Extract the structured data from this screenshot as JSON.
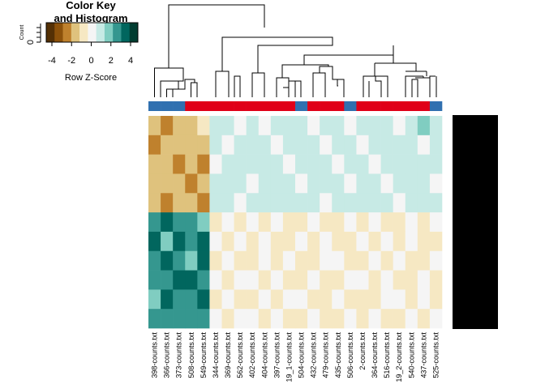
{
  "chart_data": {
    "type": "heatmap",
    "color_key": {
      "title_line1": "Color Key",
      "title_line2": "and Histogram",
      "xlabel": "Row Z-Score",
      "ylabel": "Count",
      "ytick": 0,
      "xlim": [
        -4,
        4
      ],
      "xticks": [
        -4,
        -2,
        0,
        2,
        4
      ]
    },
    "colors": [
      "#543005",
      "#8c510a",
      "#bf812d",
      "#dfc27d",
      "#f6e8c3",
      "#f5f5f5",
      "#c7eae5",
      "#80cdc1",
      "#35978f",
      "#01665e",
      "#003c30"
    ],
    "categories": [
      "398-counts.txt",
      "366-counts.txt",
      "373-counts.txt",
      "508-counts.txt",
      "549-counts.txt",
      "344-counts.txt",
      "369-counts.txt",
      "562-counts.txt",
      "402-counts.txt",
      "404-counts.txt",
      "397-counts.txt",
      "19_1-counts.txt",
      "504-counts.txt",
      "432-counts.txt",
      "479-counts.txt",
      "435-counts.txt",
      "506-counts.txt",
      "2-counts.txt",
      "364-counts.txt",
      "516-counts.txt",
      "19_2-counts.txt",
      "540-counts.txt",
      "437-counts.txt",
      "525-counts.txt"
    ],
    "column_colors": [
      "#3070b0",
      "#3070b0",
      "#3070b0",
      "#e00018",
      "#e00018",
      "#e00018",
      "#e00018",
      "#e00018",
      "#e00018",
      "#e00018",
      "#e00018",
      "#e00018",
      "#3070b0",
      "#e00018",
      "#e00018",
      "#e00018",
      "#3070b0",
      "#e00018",
      "#e00018",
      "#e00018",
      "#e00018",
      "#e00018",
      "#e00018",
      "#3070b0"
    ],
    "values": [
      [
        -1.5,
        -2,
        -1.2,
        -1.8,
        -1,
        0.5,
        1,
        0.3,
        0.8,
        0.2,
        0.6,
        0.4,
        0.9,
        0.3,
        0.7,
        0.5,
        0.2,
        0.6,
        0.4,
        0.8,
        0.3,
        0.5,
        1.1,
        0.4
      ],
      [
        -2,
        -1.3,
        -1.7,
        -1.1,
        -1.6,
        0.7,
        0.3,
        0.9,
        0.4,
        0.6,
        0.2,
        0.8,
        0.5,
        0.7,
        0.3,
        0.9,
        0.6,
        0.3,
        0.7,
        0.4,
        0.9,
        0.6,
        0.3,
        0.5
      ],
      [
        -1.2,
        -1.8,
        -2.2,
        -1.4,
        -1.9,
        0.3,
        0.8,
        0.5,
        1,
        0.4,
        0.7,
        0.3,
        0.6,
        0.4,
        0.8,
        0.2,
        0.7,
        0.5,
        0.3,
        0.6,
        0.4,
        0.8,
        0.5,
        0.7
      ],
      [
        -1.7,
        -1.1,
        -1.5,
        -2,
        -1.3,
        0.6,
        0.4,
        0.7,
        0.3,
        0.8,
        0.5,
        0.9,
        0.3,
        0.6,
        0.4,
        0.7,
        0.3,
        0.8,
        0.6,
        0.2,
        0.7,
        0.4,
        0.6,
        0.3
      ],
      [
        -1.4,
        -1.9,
        -1.3,
        -1.6,
        -2.3,
        0.4,
        0.7,
        0.2,
        0.6,
        0.5,
        0.8,
        0.4,
        0.7,
        0.5,
        0.3,
        0.6,
        0.8,
        0.4,
        0.5,
        0.7,
        0.3,
        0.6,
        0.4,
        0.8
      ],
      [
        2.1,
        2.8,
        1.9,
        2.5,
        1.7,
        -0.4,
        -0.2,
        -0.5,
        -0.3,
        -0.6,
        -0.2,
        -0.4,
        -0.5,
        -0.3,
        -0.6,
        -0.4,
        -0.2,
        -0.5,
        -0.3,
        -0.4,
        -0.6,
        -0.2,
        -0.5,
        -0.3
      ],
      [
        2.6,
        1.8,
        2.9,
        2.2,
        3.1,
        -0.3,
        -0.5,
        -0.2,
        -0.4,
        -0.3,
        -0.6,
        -0.5,
        -0.2,
        -0.4,
        -0.3,
        -0.5,
        -0.6,
        -0.3,
        -0.4,
        -0.2,
        -0.5,
        -0.3,
        -0.4,
        -0.6
      ],
      [
        1.9,
        3,
        2.4,
        1.8,
        2.7,
        -0.5,
        -0.3,
        -0.4,
        -0.6,
        -0.2,
        -0.4,
        -0.3,
        -0.5,
        -0.6,
        -0.2,
        -0.3,
        -0.4,
        -0.6,
        -0.2,
        -0.5,
        -0.3,
        -0.4,
        -0.6,
        -0.2
      ],
      [
        2.4,
        2.2,
        2.7,
        3.2,
        2,
        -0.2,
        -0.6,
        -0.3,
        -0.2,
        -0.5,
        -0.3,
        -0.6,
        -0.4,
        -0.2,
        -0.5,
        -0.6,
        -0.3,
        -0.2,
        -0.5,
        -0.3,
        -0.4,
        -0.6,
        -0.2,
        -0.4
      ],
      [
        1.8,
        2.6,
        2.1,
        2.4,
        2.9,
        -0.4,
        -0.3,
        -0.6,
        -0.5,
        -0.3,
        -0.5,
        -0.2,
        -0.3,
        -0.5,
        -0.4,
        -0.2,
        -0.5,
        -0.4,
        -0.6,
        -0.3,
        -0.2,
        -0.5,
        -0.3,
        -0.5
      ],
      [
        2.2,
        1.9,
        2.5,
        2,
        2.3,
        -0.3,
        -0.4,
        -0.2,
        -0.3,
        -0.4,
        -0.2,
        -0.5,
        -0.6,
        -0.3,
        -0.4,
        -0.5,
        -0.3,
        -0.4,
        -0.2,
        -0.6,
        -0.4,
        -0.3,
        -0.5,
        -0.2
      ]
    ]
  }
}
